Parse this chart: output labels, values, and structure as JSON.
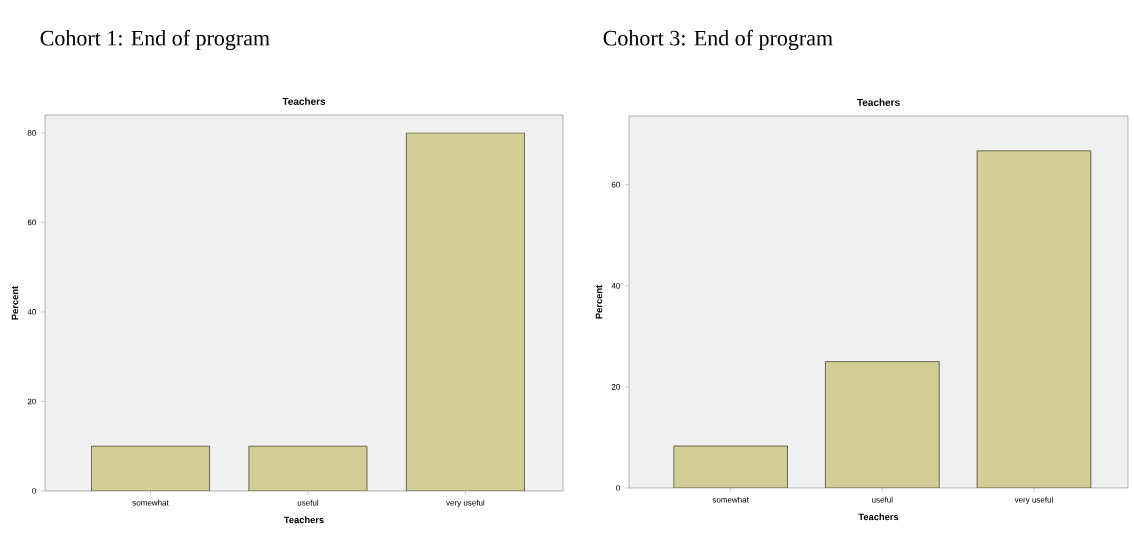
{
  "chart_data": [
    {
      "type": "bar",
      "title": "Cohort 1: End of program",
      "subtitle": "Teachers",
      "xlabel": "Teachers",
      "ylabel": "Percent",
      "categories": [
        "somewhat",
        "useful",
        "very useful"
      ],
      "values": [
        10,
        10,
        80
      ],
      "color": "#d3cd96",
      "ylim": [
        0,
        84
      ],
      "yticks": [
        0,
        20,
        40,
        60,
        80
      ]
    },
    {
      "type": "bar",
      "title": "Cohort 3: End of program",
      "subtitle": "Teachers",
      "xlabel": "Teachers",
      "ylabel": "Percent",
      "categories": [
        "somewhat",
        "useful",
        "very useful"
      ],
      "values": [
        8.3,
        25,
        66.7
      ],
      "color": "#d3cd96",
      "ylim": [
        0,
        73.6
      ],
      "yticks": [
        0,
        20,
        40,
        60
      ]
    }
  ]
}
